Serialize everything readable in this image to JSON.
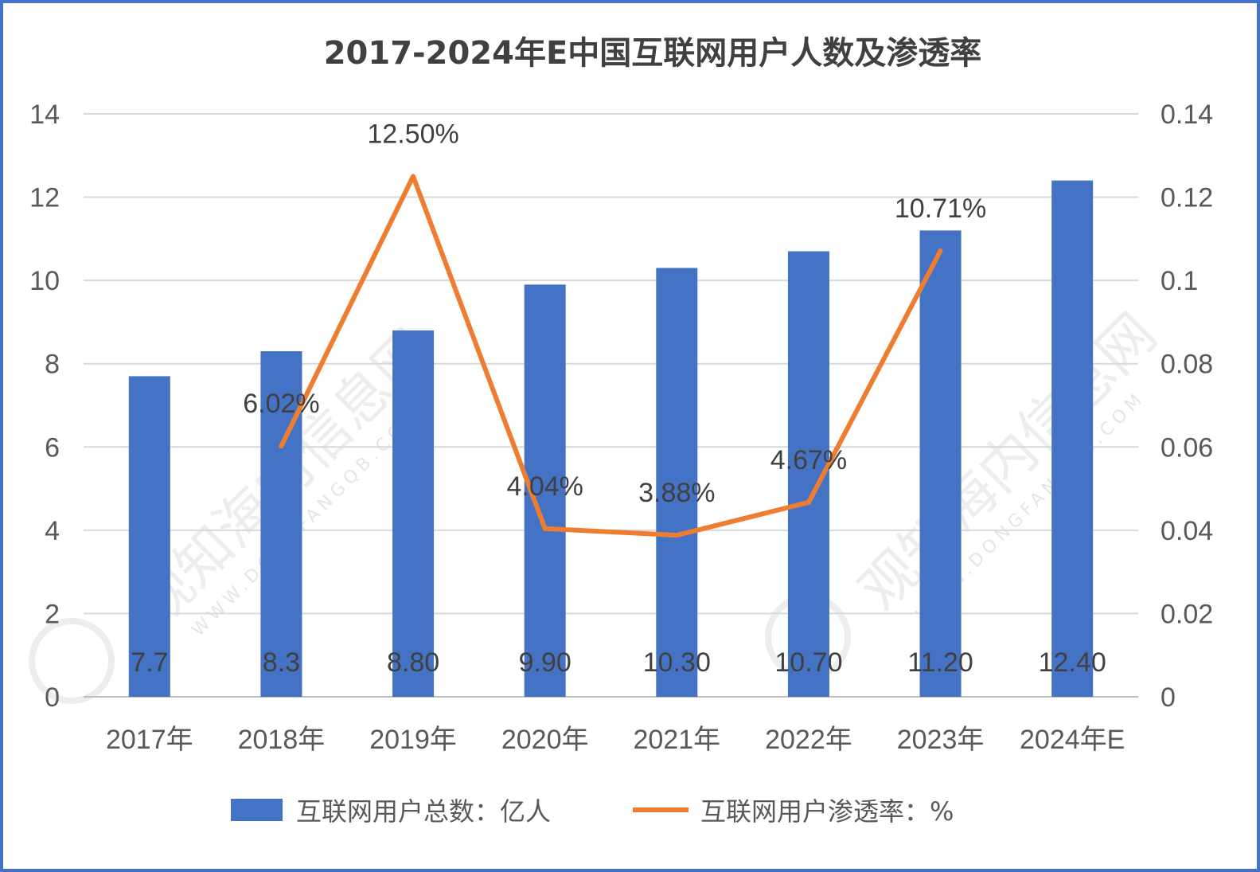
{
  "chart_data": {
    "type": "bar",
    "title": "2017-2024年E中国互联网用户人数及渗透率",
    "categories": [
      "2017年",
      "2018年",
      "2019年",
      "2020年",
      "2021年",
      "2022年",
      "2023年",
      "2024年E"
    ],
    "series": [
      {
        "name": "互联网用户总数：亿人",
        "type": "bar",
        "axis": "left",
        "color": "#4472c4",
        "values": [
          7.7,
          8.3,
          8.8,
          9.9,
          10.3,
          10.7,
          11.2,
          12.4
        ],
        "labels": [
          "7.7",
          "8.3",
          "8.80",
          "9.90",
          "10.30",
          "10.70",
          "11.20",
          "12.40"
        ]
      },
      {
        "name": "互联网用户渗透率：%",
        "type": "line",
        "axis": "right",
        "color": "#ed7d31",
        "values": [
          null,
          0.0602,
          0.125,
          0.0404,
          0.0388,
          0.0467,
          0.1071,
          null
        ],
        "labels": [
          "",
          "6.02%",
          "12.50%",
          "4.04%",
          "3.88%",
          "4.67%",
          "10.71%",
          ""
        ]
      }
    ],
    "y_left": {
      "min": 0,
      "max": 14,
      "ticks": [
        "0",
        "2",
        "4",
        "6",
        "8",
        "10",
        "12",
        "14"
      ]
    },
    "y_right": {
      "min": 0,
      "max": 0.14,
      "ticks": [
        "0",
        "0.02",
        "0.04",
        "0.06",
        "0.08",
        "0.1",
        "0.12",
        "0.14"
      ]
    },
    "grid": true,
    "legend_position": "bottom"
  }
}
